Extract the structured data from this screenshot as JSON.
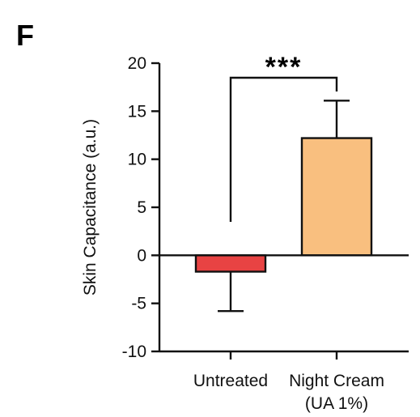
{
  "panel_label": "F",
  "chart_data": {
    "type": "bar",
    "title": "",
    "xlabel": "",
    "ylabel": "Skin  Capacitance (a.u.)",
    "ylim": [
      -10,
      20
    ],
    "yticks": [
      20,
      15,
      10,
      5,
      0,
      -5,
      -10
    ],
    "ytick_labels": [
      "20",
      "15",
      "10",
      "5",
      "0",
      "-5",
      "-10"
    ],
    "categories": [
      {
        "line1": "Untreated",
        "line2": ""
      },
      {
        "line1": "Night Cream",
        "line2": "(UA 1%)"
      }
    ],
    "values": [
      -1.7,
      12.2
    ],
    "errors": [
      4.1,
      3.9
    ],
    "colors": [
      "#e84343",
      "#f9bf7f"
    ],
    "edge_color": "#111111",
    "significance": {
      "label": "***",
      "between": [
        0,
        1
      ]
    },
    "grid": false
  }
}
